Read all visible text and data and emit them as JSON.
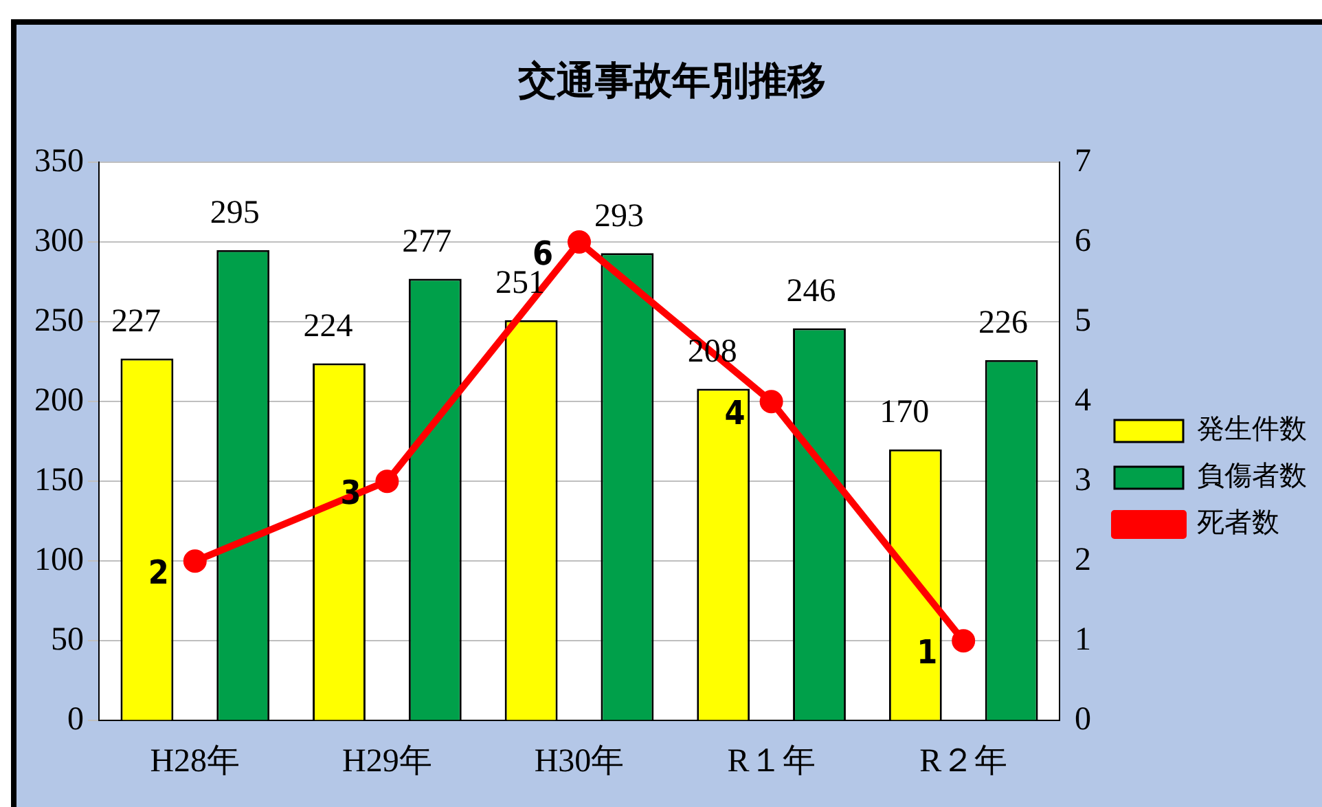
{
  "chart_data": {
    "type": "bar",
    "title": "交通事故年別推移",
    "categories": [
      "H28年",
      "H29年",
      "H30年",
      "R１年",
      "R２年"
    ],
    "series": [
      {
        "name": "発生件数",
        "color": "#ffff00",
        "values": [
          227,
          224,
          251,
          208,
          170
        ]
      },
      {
        "name": "負傷者数",
        "color": "#00a04a",
        "values": [
          295,
          277,
          293,
          246,
          226
        ]
      },
      {
        "name": "死者数",
        "type": "line",
        "axis": "y2",
        "color": "#ff0000",
        "values": [
          2,
          3,
          6,
          4,
          1
        ]
      }
    ],
    "ylim": [
      0,
      350
    ],
    "yticks": [
      0,
      50,
      100,
      150,
      200,
      250,
      300,
      350
    ],
    "y2lim": [
      0,
      7
    ],
    "y2ticks": [
      0,
      1,
      2,
      3,
      4,
      5,
      6,
      7
    ],
    "grid": "y",
    "legend": "right",
    "marker": "circle",
    "data_labels": true
  }
}
